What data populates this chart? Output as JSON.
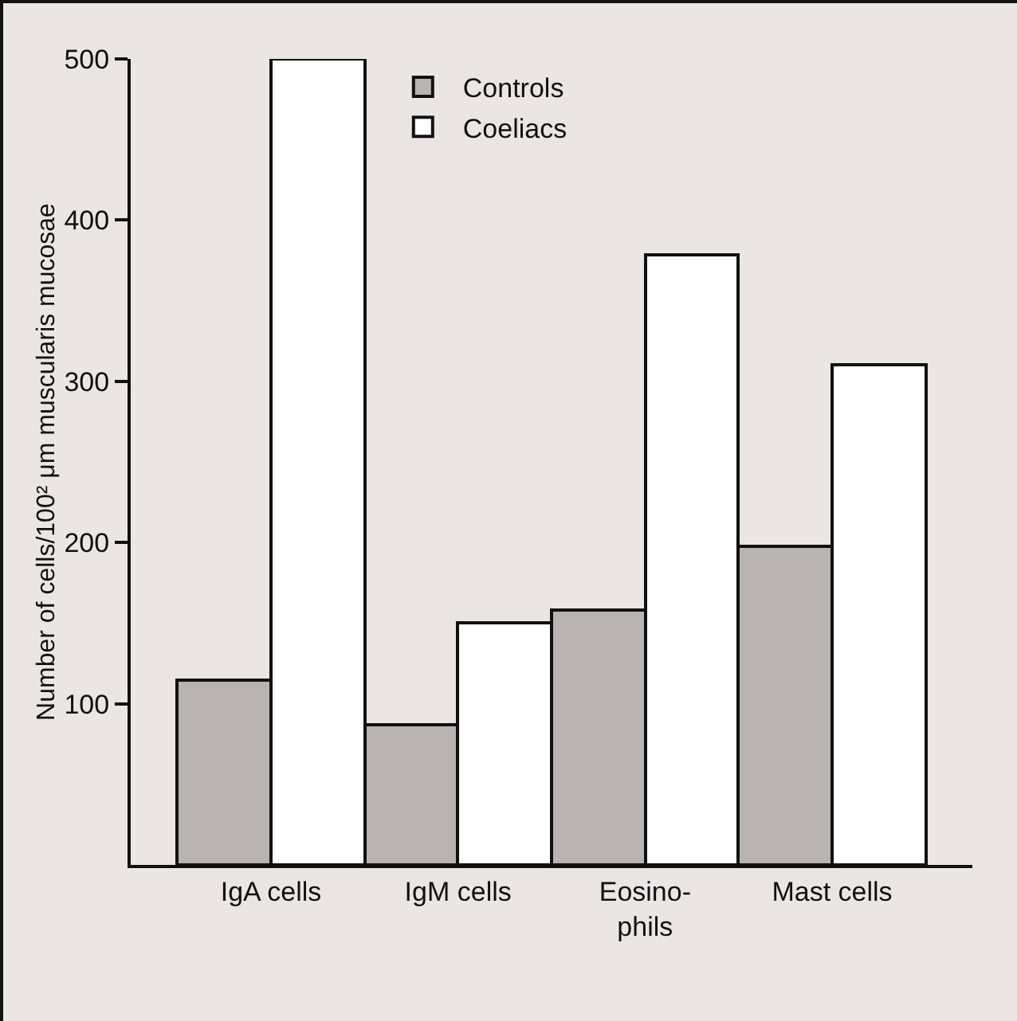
{
  "chart_data": {
    "type": "bar",
    "ylabel": "Number of cells/100² μm muscularis mucosae",
    "categories": [
      "IgA cells",
      "IgM cells",
      "Eosino-\nphils",
      "Mast cells"
    ],
    "series": [
      {
        "name": "Controls",
        "color": "#b9b3b1",
        "values": [
          115,
          87,
          158,
          198
        ]
      },
      {
        "name": "Coeliacs",
        "color": "#ffffff",
        "values": [
          500,
          150,
          378,
          310
        ]
      }
    ],
    "ylim": [
      0,
      500
    ],
    "yticks": [
      100,
      200,
      300,
      400,
      500
    ],
    "grid": false,
    "legend": "top"
  }
}
